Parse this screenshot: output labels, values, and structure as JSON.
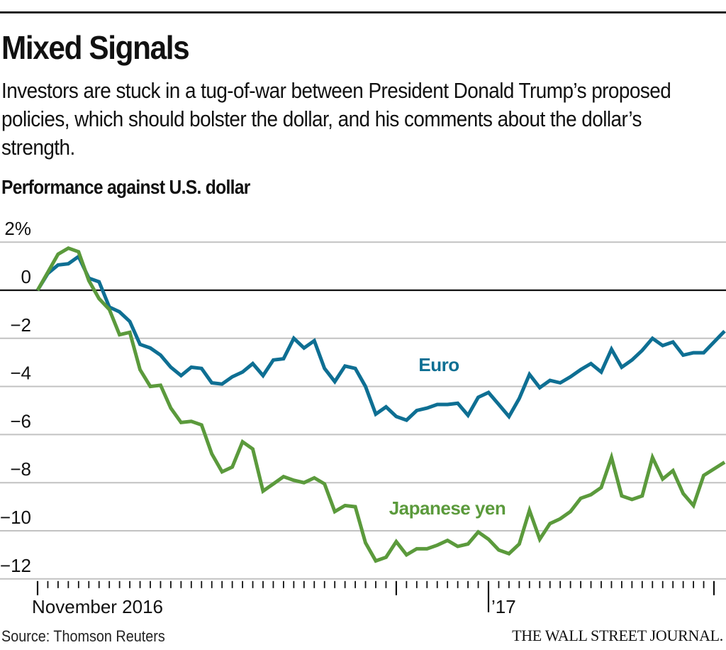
{
  "header": {
    "title": "Mixed Signals",
    "subtitle": "Investors are stuck in a tug-of-war between President Donald Trump’s proposed policies, which should bolster the dollar, and his comments about the dollar’s strength.",
    "chart_label": "Performance against U.S. dollar"
  },
  "footer": {
    "source": "Source: Thomson Reuters",
    "brand": "THE WALL STREET JOURNAL."
  },
  "colors": {
    "euro": "#0e6f93",
    "yen": "#5b9a3c",
    "grid": "#c2c2c2",
    "zero_line": "#111111"
  },
  "chart_data": {
    "type": "line",
    "title": "Performance against U.S. dollar",
    "xlabel": "",
    "ylabel": "",
    "ylim": [
      -12,
      2
    ],
    "y_ticks": [
      2,
      0,
      -2,
      -4,
      -6,
      -8,
      -10,
      -12
    ],
    "y_tick_labels": [
      "2%",
      "0",
      "−2",
      "−4",
      "−6",
      "−8",
      "−10",
      "−12"
    ],
    "x_tick_labels": [
      {
        "label": "November 2016",
        "index": 0
      },
      {
        "label": "’17",
        "index": 44
      }
    ],
    "x_major_tick_indices": [
      0,
      35,
      44,
      66
    ],
    "grid": true,
    "n_points": 67,
    "series": [
      {
        "name": "Euro",
        "label": "Euro",
        "values": [
          0,
          0.7,
          1.05,
          1.1,
          1.4,
          0.5,
          0.35,
          -0.7,
          -0.9,
          -1.3,
          -2.25,
          -2.4,
          -2.7,
          -3.2,
          -3.55,
          -3.2,
          -3.25,
          -3.85,
          -3.9,
          -3.6,
          -3.4,
          -3.05,
          -3.55,
          -2.9,
          -2.85,
          -2.0,
          -2.4,
          -2.1,
          -3.25,
          -3.8,
          -3.15,
          -3.25,
          -4.0,
          -5.15,
          -4.85,
          -5.25,
          -5.4,
          -5.0,
          -4.9,
          -4.75,
          -4.75,
          -4.7,
          -5.2,
          -4.45,
          -4.25,
          -4.75,
          -5.25,
          -4.5,
          -3.5,
          -4.05,
          -3.75,
          -3.85,
          -3.6,
          -3.3,
          -3.05,
          -3.4,
          -2.45,
          -3.2,
          -2.9,
          -2.5,
          -2.0,
          -2.3,
          -2.15,
          -2.7,
          -2.6,
          -2.6,
          -1.7
        ]
      },
      {
        "name": "Japanese yen",
        "label": "Japanese yen",
        "values": [
          0,
          0.75,
          1.5,
          1.75,
          1.6,
          0.4,
          -0.35,
          -0.8,
          -1.85,
          -1.75,
          -3.3,
          -4.0,
          -3.95,
          -4.9,
          -5.5,
          -5.45,
          -5.6,
          -6.8,
          -7.55,
          -7.35,
          -6.3,
          -6.6,
          -8.35,
          -8.05,
          -7.75,
          -7.9,
          -8.0,
          -7.8,
          -8.05,
          -9.2,
          -8.95,
          -9.0,
          -10.5,
          -11.25,
          -11.1,
          -10.45,
          -11.0,
          -10.75,
          -10.75,
          -10.6,
          -10.4,
          -10.65,
          -10.55,
          -10.05,
          -10.35,
          -10.8,
          -10.95,
          -10.55,
          -9.15,
          -10.35,
          -9.7,
          -9.5,
          -9.2,
          -8.65,
          -8.5,
          -8.2,
          -6.95,
          -8.55,
          -8.7,
          -8.55,
          -6.95,
          -7.85,
          -7.5,
          -8.45,
          -8.95,
          -7.7,
          -7.15
        ]
      }
    ]
  }
}
